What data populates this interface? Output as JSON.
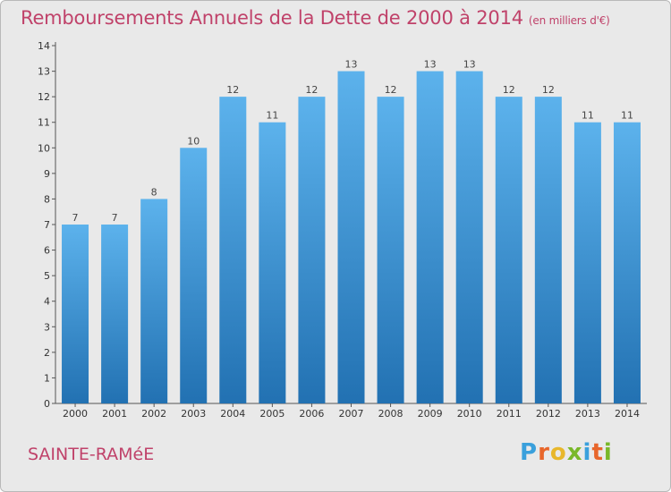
{
  "header": {
    "title": "Remboursements Annuels de la Dette de 2000 à 2014",
    "unit": "(en milliers d'€)"
  },
  "footer": {
    "commune": "SAINTE-RAMéE",
    "logo": {
      "letters": [
        "P",
        "r",
        "o",
        "x",
        "i",
        "t",
        "i"
      ],
      "colors": [
        "#3aa0dc",
        "#e8662b",
        "#e8b72b",
        "#79b829",
        "#3aa0dc",
        "#e8662b",
        "#79b829"
      ]
    }
  },
  "chart_data": {
    "type": "bar",
    "categories": [
      "2000",
      "2001",
      "2002",
      "2003",
      "2004",
      "2005",
      "2006",
      "2007",
      "2008",
      "2009",
      "2010",
      "2011",
      "2012",
      "2013",
      "2014"
    ],
    "values": [
      7,
      7,
      8,
      10,
      12,
      11,
      12,
      13,
      12,
      13,
      13,
      12,
      12,
      11,
      11
    ],
    "value_labels": [
      "7",
      "7",
      "8",
      "10",
      "12",
      "11",
      "12",
      "13",
      "12",
      "13",
      "13",
      "12",
      "12",
      "11",
      "11"
    ],
    "y_ticks": [
      "0",
      "1",
      "2",
      "3",
      "4",
      "5",
      "6",
      "7",
      "8",
      "9",
      "10",
      "11",
      "12",
      "13",
      "14"
    ],
    "ylim": [
      0,
      14
    ],
    "grid": false,
    "colors": {
      "bar_top": "#5cb2ec",
      "bar_bottom": "#2271b2",
      "background": "#e9e9e9"
    }
  }
}
